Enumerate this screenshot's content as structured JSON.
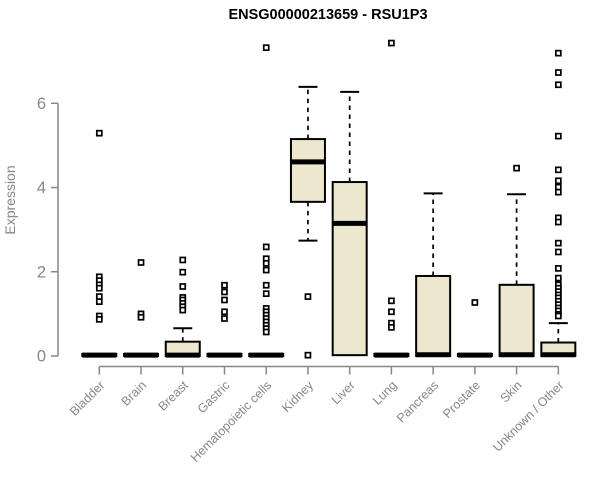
{
  "chart_data": {
    "type": "boxplot",
    "title": "ENSG00000213659 - RSU1P3",
    "ylabel": "Expression",
    "xlabel": "",
    "ylim": [
      0,
      7.6
    ],
    "yticks": [
      0,
      2,
      4,
      6
    ],
    "grid": false,
    "legend": "none",
    "colors": {
      "box_fill": "#EDE7CE",
      "box_edge": "#000000",
      "median": "#000000",
      "axis": "#878787",
      "tick_label": "#878787",
      "title": "#000000",
      "background": "#FFFFFF"
    },
    "categories": [
      "Bladder",
      "Brain",
      "Breast",
      "Gastric",
      "Hematopoietic cells",
      "Kidney",
      "Liver",
      "Lung",
      "Pancreas",
      "Prostate",
      "Skin",
      "Unknown / Other"
    ],
    "boxes": [
      {
        "category": "Bladder",
        "whislo": 0,
        "q1": 0,
        "med": 0.02,
        "q3": 0.05,
        "whishi": 0.05,
        "outliers": [
          5.29,
          1.88,
          1.79,
          1.69,
          1.61,
          1.41,
          1.29,
          0.95,
          0.87
        ]
      },
      {
        "category": "Brain",
        "whislo": 0,
        "q1": 0,
        "med": 0.02,
        "q3": 0.05,
        "whishi": 0.05,
        "outliers": [
          2.22,
          1.0,
          0.92
        ]
      },
      {
        "category": "Breast",
        "whislo": 0,
        "q1": 0,
        "med": 0.02,
        "q3": 0.34,
        "whishi": 0.66,
        "outliers": [
          2.28,
          1.99,
          1.65,
          1.39,
          1.33,
          1.25,
          1.17,
          1.09
        ]
      },
      {
        "category": "Gastric",
        "whislo": 0,
        "q1": 0,
        "med": 0.02,
        "q3": 0.05,
        "whishi": 0.05,
        "outliers": [
          1.68,
          1.52,
          1.33,
          1.05,
          0.89
        ]
      },
      {
        "category": "Hematopoietic cells",
        "whislo": 0,
        "q1": 0,
        "med": 0.02,
        "q3": 0.05,
        "whishi": 0.05,
        "outliers": [
          7.32,
          2.59,
          2.31,
          2.2,
          2.04,
          1.68,
          1.48,
          1.13,
          1.05,
          0.97,
          0.89,
          0.81,
          0.73,
          0.65,
          0.57
        ]
      },
      {
        "category": "Kidney",
        "whislo": 2.74,
        "q1": 3.66,
        "med": 4.61,
        "q3": 5.15,
        "whishi": 6.39,
        "outliers": [
          1.41,
          0.02
        ]
      },
      {
        "category": "Liver",
        "whislo": 0.02,
        "q1": 0.02,
        "med": 3.15,
        "q3": 4.13,
        "whishi": 6.27,
        "outliers": []
      },
      {
        "category": "Lung",
        "whislo": 0,
        "q1": 0,
        "med": 0.02,
        "q3": 0.05,
        "whishi": 0.05,
        "outliers": [
          7.43,
          1.31,
          1.05,
          0.78,
          0.68
        ]
      },
      {
        "category": "Pancreas",
        "whislo": 0,
        "q1": 0,
        "med": 0.03,
        "q3": 1.9,
        "whishi": 3.86,
        "outliers": []
      },
      {
        "category": "Prostate",
        "whislo": 0,
        "q1": 0,
        "med": 0.02,
        "q3": 0.05,
        "whishi": 0.05,
        "outliers": [
          1.27
        ]
      },
      {
        "category": "Skin",
        "whislo": 0,
        "q1": 0,
        "med": 0.03,
        "q3": 1.69,
        "whishi": 3.84,
        "outliers": [
          4.46
        ]
      },
      {
        "category": "Unknown / Other",
        "whislo": 0,
        "q1": 0,
        "med": 0.03,
        "q3": 0.32,
        "whishi": 0.78,
        "outliers": [
          7.19,
          6.73,
          6.44,
          5.22,
          4.42,
          4.16,
          4.01,
          3.89,
          3.28,
          3.18,
          2.68,
          2.47,
          2.08,
          1.85,
          1.69,
          1.61,
          1.53,
          1.45,
          1.38,
          1.3,
          1.22,
          1.14,
          1.07,
          0.99,
          0.95
        ]
      }
    ]
  }
}
